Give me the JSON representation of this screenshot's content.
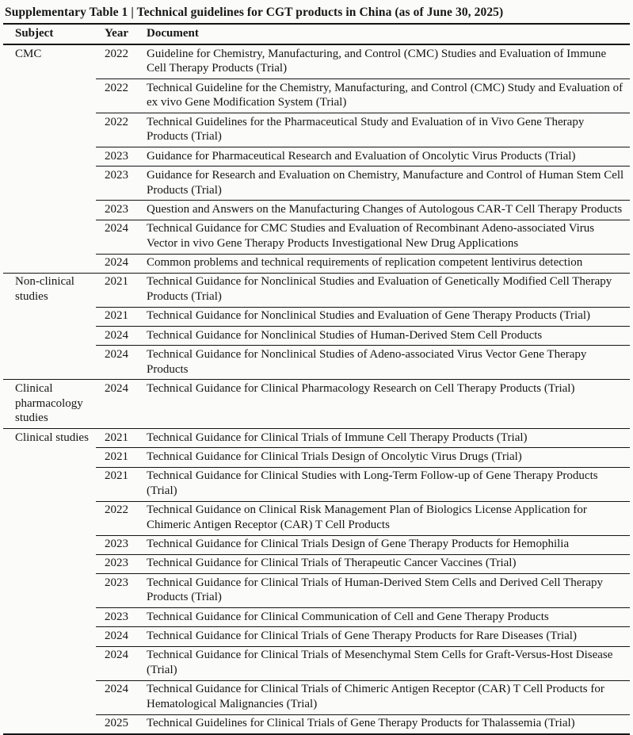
{
  "colors": {
    "rule": "#141414",
    "text": "#161616",
    "background": "#fbfbfa"
  },
  "title": "Supplementary Table 1 | Technical guidelines for CGT products in China (as of June 30, 2025)",
  "table": {
    "columns": [
      "Subject",
      "Year",
      "Document"
    ],
    "groups": [
      {
        "subject": "CMC",
        "rows": [
          {
            "year": "2022",
            "document": "Guideline for Chemistry, Manufacturing, and Control (CMC) Studies and Evaluation of Immune Cell Therapy Products (Trial)"
          },
          {
            "year": "2022",
            "document": "Technical Guideline for the Chemistry, Manufacturing, and Control (CMC) Study and Evaluation of ex vivo Gene Modification System (Trial)"
          },
          {
            "year": "2022",
            "document": "Technical Guidelines for the Pharmaceutical Study and Evaluation of in Vivo Gene Therapy Products (Trial)"
          },
          {
            "year": "2023",
            "document": "Guidance for Pharmaceutical Research and Evaluation of Oncolytic Virus Products (Trial)"
          },
          {
            "year": "2023",
            "document": "Guidance for Research and Evaluation on Chemistry, Manufacture and Control of Human Stem Cell Products (Trial)"
          },
          {
            "year": "2023",
            "document": "Question and Answers on the Manufacturing Changes of Autologous CAR-T Cell Therapy Products"
          },
          {
            "year": "2024",
            "document": "Technical Guidance for CMC Studies and Evaluation of Recombinant Adeno-associated Virus Vector in vivo Gene Therapy Products Investigational New Drug Applications"
          },
          {
            "year": "2024",
            "document": "Common problems and technical requirements of replication competent lentivirus detection"
          }
        ]
      },
      {
        "subject": "Non-clinical studies",
        "rows": [
          {
            "year": "2021",
            "document": "Technical Guidance for Nonclinical Studies and Evaluation of Genetically Modified Cell Therapy Products (Trial)"
          },
          {
            "year": "2021",
            "document": "Technical Guidance for Nonclinical Studies and Evaluation of Gene Therapy Products (Trial)"
          },
          {
            "year": "2024",
            "document": "Technical Guidance for Nonclinical Studies of Human-Derived Stem Cell Products"
          },
          {
            "year": "2024",
            "document": "Technical Guidance for Nonclinical Studies of Adeno-associated Virus Vector Gene Therapy Products"
          }
        ]
      },
      {
        "subject": "Clinical pharmacology studies",
        "rows": [
          {
            "year": "2024",
            "document": "Technical Guidance for Clinical Pharmacology Research on Cell Therapy Products (Trial)"
          }
        ]
      },
      {
        "subject": "Clinical studies",
        "rows": [
          {
            "year": "2021",
            "document": "Technical Guidance for Clinical Trials of Immune Cell Therapy Products (Trial)"
          },
          {
            "year": "2021",
            "document": "Technical Guidance for Clinical Trials Design of Oncolytic Virus Drugs (Trial)"
          },
          {
            "year": "2021",
            "document": "Technical Guidance for Clinical Studies with Long-Term Follow-up of Gene Therapy Products (Trial)"
          },
          {
            "year": "2022",
            "document": "Technical Guidance on Clinical Risk Management Plan of Biologics License Application for Chimeric Antigen Receptor (CAR) T Cell Products"
          },
          {
            "year": "2023",
            "document": "Technical Guidance for Clinical Trials Design of Gene Therapy Products for Hemophilia"
          },
          {
            "year": "2023",
            "document": "Technical Guidance for Clinical Trials of Therapeutic Cancer Vaccines (Trial)"
          },
          {
            "year": "2023",
            "document": "Technical Guidance for Clinical Trials of Human-Derived Stem Cells and Derived Cell Therapy Products (Trial)"
          },
          {
            "year": "2023",
            "document": "Technical Guidance for Clinical Communication of Cell and Gene Therapy Products"
          },
          {
            "year": "2024",
            "document": "Technical Guidance for Clinical Trials of Gene Therapy Products for Rare Diseases (Trial)"
          },
          {
            "year": "2024",
            "document": "Technical Guidance for Clinical Trials of Mesenchymal Stem Cells for Graft-Versus-Host Disease (Trial)"
          },
          {
            "year": "2024",
            "document": "Technical Guidance for Clinical Trials of Chimeric Antigen Receptor (CAR) T Cell Products for Hematological Malignancies (Trial)"
          },
          {
            "year": "2025",
            "document": "Technical Guidelines for Clinical Trials of Gene Therapy Products for Thalassemia (Trial)"
          }
        ]
      }
    ]
  }
}
